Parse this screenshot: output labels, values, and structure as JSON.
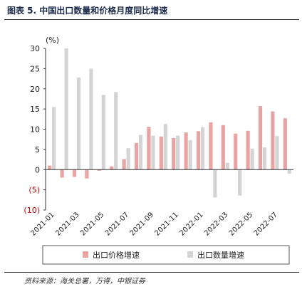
{
  "title": "图表 5. 中国出口数量和价格月度同比增速",
  "source": "资料来源：海关总署，万得，中银证券",
  "chart_data": {
    "type": "bar",
    "unit_label": "(%)",
    "categories": [
      "2021-01",
      "2021-02",
      "2021-03",
      "2021-04",
      "2021-05",
      "2021-06",
      "2021-07",
      "2021-08",
      "2021-09",
      "2021-10",
      "2021-11",
      "2021-12",
      "2022-01",
      "2022-02",
      "2022-03",
      "2022-04",
      "2022-05",
      "2022-06",
      "2022-07",
      "2022-08"
    ],
    "tick_labels": [
      "2021-01",
      "2021-03",
      "2021-05",
      "2021-07",
      "2021-09",
      "2021-11",
      "2022-01",
      "2022-03",
      "2022-05",
      "2022-07"
    ],
    "series": [
      {
        "name": "出口价格增速",
        "color": "#e8a3a3",
        "values": [
          1.0,
          -2.0,
          -1.8,
          -2.2,
          -0.3,
          0.8,
          2.6,
          6.6,
          10.6,
          8.2,
          7.8,
          9.2,
          9.5,
          11.7,
          11.0,
          8.9,
          9.6,
          15.7,
          14.4,
          12.7
        ]
      },
      {
        "name": "出口数量增速",
        "color": "#d4d4d4",
        "values": [
          15.5,
          30.0,
          22.8,
          25.0,
          18.5,
          19.2,
          5.3,
          8.6,
          8.4,
          11.3,
          8.4,
          7.3,
          10.5,
          -6.9,
          1.7,
          -6.4,
          5.2,
          5.5,
          8.3,
          -1.0
        ]
      }
    ],
    "y_ticks": [
      30,
      25,
      20,
      15,
      10,
      5,
      0,
      -5,
      -10
    ],
    "y_tick_labels": [
      "30",
      "25",
      "20",
      "15",
      "10",
      "5",
      "0",
      "(5)",
      "(10)"
    ],
    "ylim": [
      -10,
      30
    ],
    "negative_label_color": "#cc0000",
    "legend_position": "bottom"
  }
}
